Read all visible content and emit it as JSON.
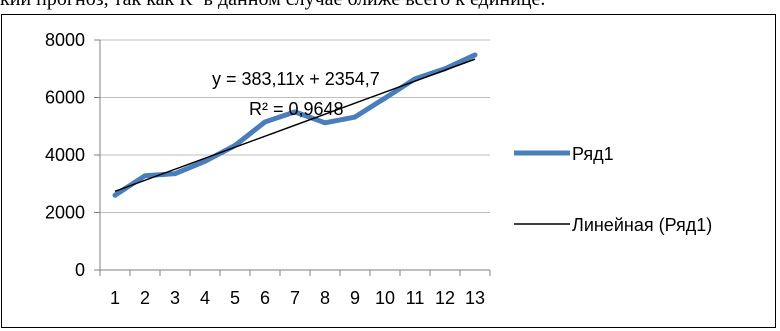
{
  "page": {
    "top_text": "кий прогноз, так как R² в данном случае ближе всего к единице."
  },
  "chart_data": {
    "type": "line",
    "categories": [
      "1",
      "2",
      "3",
      "4",
      "5",
      "6",
      "7",
      "8",
      "9",
      "10",
      "11",
      "12",
      "13"
    ],
    "series": [
      {
        "name": "Ряд1",
        "values": [
          2600,
          3280,
          3350,
          3780,
          4330,
          5150,
          5500,
          5120,
          5320,
          5980,
          6650,
          7000,
          7480
        ],
        "color": "#4a7ebb"
      }
    ],
    "trendline": {
      "name": "Линейная (Ряд1)",
      "slope": 383.11,
      "intercept": 2354.7,
      "equation": "y = 383,11x + 2354,7",
      "r2_label": "R² = 0,9648",
      "color": "#000000"
    },
    "y_ticks": [
      "0",
      "2000",
      "4000",
      "6000",
      "8000"
    ],
    "ylim": [
      0,
      8000
    ],
    "grid": true,
    "legend_position": "right"
  }
}
